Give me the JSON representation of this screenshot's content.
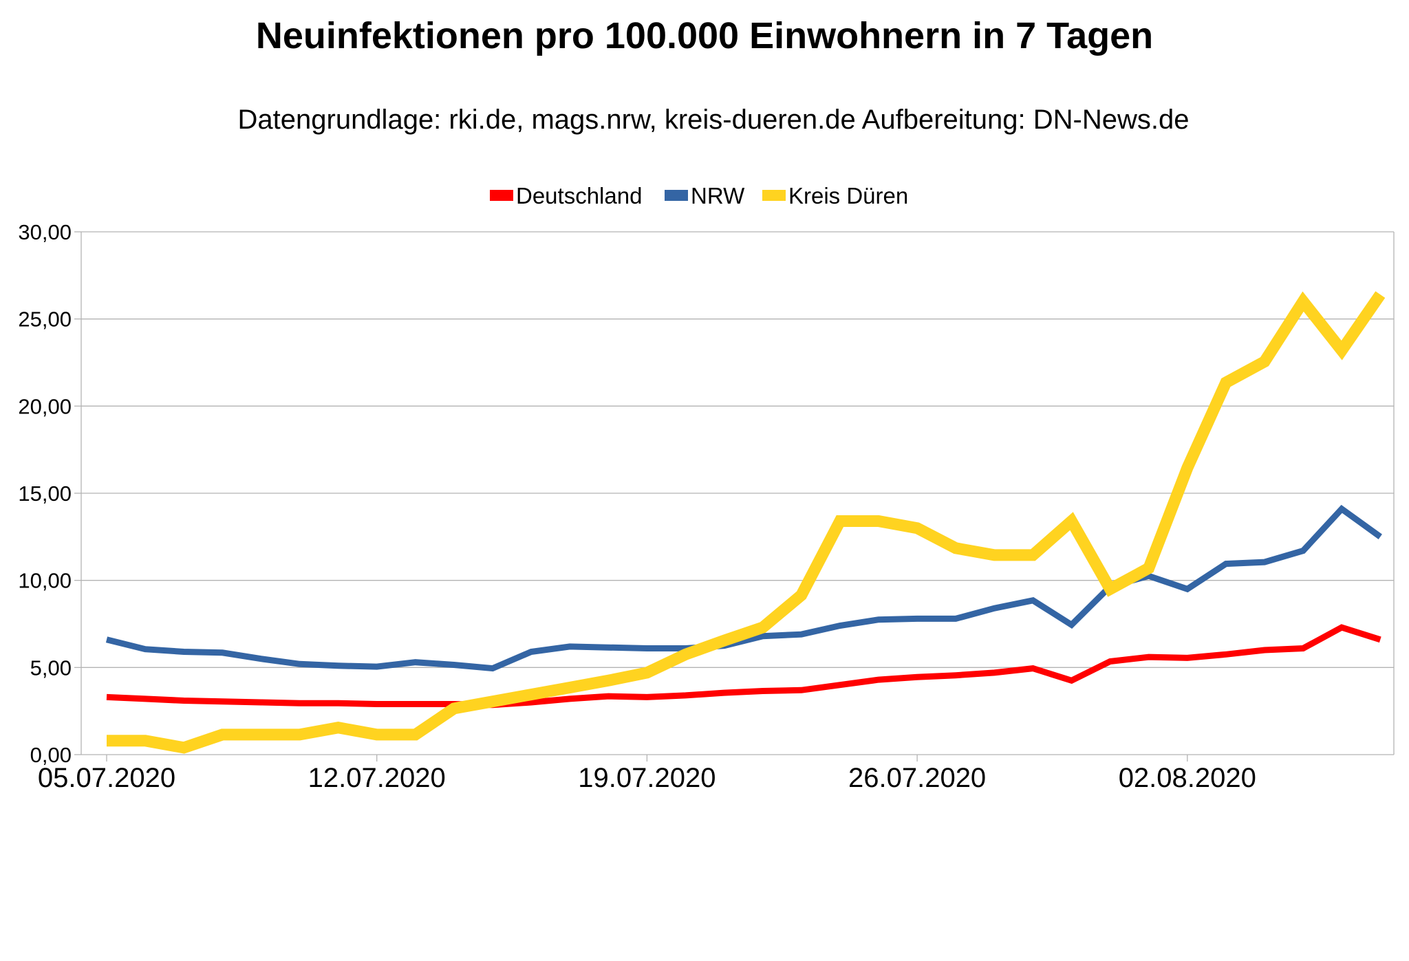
{
  "chart_data": {
    "type": "line",
    "title": "Neuinfektionen pro 100.000 Einwohnern in 7 Tagen",
    "subtitle": "Datengrundlage: rki.de, mags.nrw, kreis-dueren.de Aufbereitung: DN-News.de",
    "xlabel": "",
    "ylabel": "",
    "ylim": [
      0,
      30
    ],
    "yticks": [
      "0,00",
      "5,00",
      "10,00",
      "15,00",
      "20,00",
      "25,00",
      "30,00"
    ],
    "xtick_labels": [
      "05.07.2020",
      "12.07.2020",
      "19.07.2020",
      "26.07.2020",
      "02.08.2020"
    ],
    "grid": true,
    "legend_position": "top-center",
    "x": [
      "05.07.2020",
      "06.07.2020",
      "07.07.2020",
      "08.07.2020",
      "09.07.2020",
      "10.07.2020",
      "11.07.2020",
      "12.07.2020",
      "13.07.2020",
      "14.07.2020",
      "15.07.2020",
      "16.07.2020",
      "17.07.2020",
      "18.07.2020",
      "19.07.2020",
      "20.07.2020",
      "21.07.2020",
      "22.07.2020",
      "23.07.2020",
      "24.07.2020",
      "25.07.2020",
      "26.07.2020",
      "27.07.2020",
      "28.07.2020",
      "29.07.2020",
      "30.07.2020",
      "31.07.2020",
      "01.08.2020",
      "02.08.2020",
      "03.08.2020",
      "04.08.2020",
      "05.08.2020",
      "06.08.2020",
      "07.08.2020"
    ],
    "series": [
      {
        "name": "Deutschland",
        "color": "#ff0000",
        "values": [
          3.3,
          3.2,
          3.1,
          3.05,
          3.0,
          2.95,
          2.95,
          2.9,
          2.9,
          2.9,
          2.85,
          3.0,
          3.2,
          3.35,
          3.3,
          3.4,
          3.55,
          3.65,
          3.7,
          4.0,
          4.3,
          4.45,
          4.55,
          4.7,
          4.95,
          4.25,
          5.35,
          5.6,
          5.55,
          5.75,
          6.0,
          6.1,
          7.3,
          6.6
        ]
      },
      {
        "name": "NRW",
        "color": "#3465a4",
        "values": [
          6.6,
          6.05,
          5.9,
          5.85,
          5.5,
          5.2,
          5.1,
          5.05,
          5.3,
          5.15,
          4.95,
          5.9,
          6.2,
          6.15,
          6.1,
          6.1,
          6.25,
          6.8,
          6.9,
          7.4,
          7.75,
          7.8,
          7.8,
          8.4,
          8.85,
          7.45,
          9.65,
          10.25,
          9.5,
          10.95,
          11.05,
          11.7,
          14.1,
          12.5
        ]
      },
      {
        "name": "Kreis Düren",
        "color": "#ffd320",
        "values": [
          0.8,
          0.8,
          0.4,
          1.15,
          1.15,
          1.15,
          1.55,
          1.15,
          1.15,
          2.65,
          3.05,
          3.45,
          3.85,
          4.25,
          4.7,
          5.75,
          6.55,
          7.3,
          9.15,
          13.4,
          13.4,
          13.0,
          11.85,
          11.45,
          11.45,
          13.4,
          9.5,
          10.7,
          16.45,
          21.35,
          22.55,
          26.0,
          23.2,
          26.4
        ]
      }
    ]
  }
}
